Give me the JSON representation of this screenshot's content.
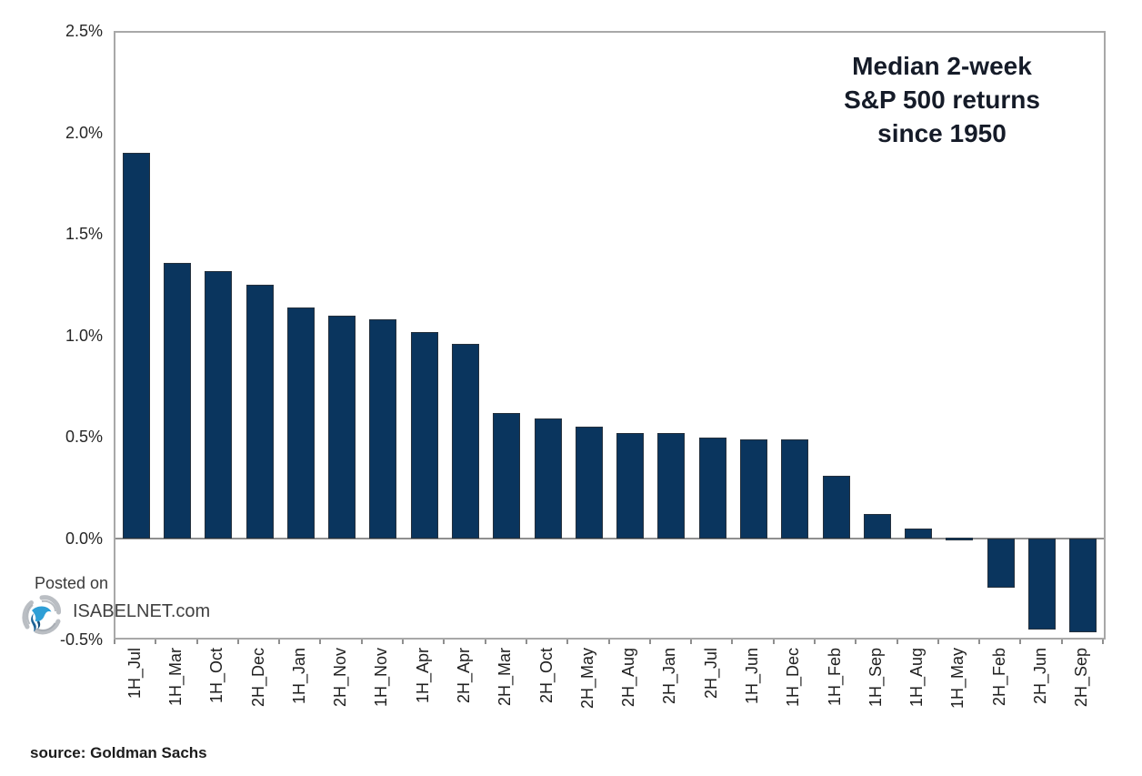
{
  "chart_data": {
    "type": "bar",
    "title": "Median 2-week S&P 500 returns since 1950",
    "title_lines": [
      "Median 2-week",
      "S&P 500 returns",
      "since 1950"
    ],
    "categories": [
      "1H_Jul",
      "1H_Mar",
      "1H_Oct",
      "2H_Dec",
      "1H_Jan",
      "2H_Nov",
      "1H_Nov",
      "1H_Apr",
      "2H_Apr",
      "2H_Mar",
      "2H_Oct",
      "2H_May",
      "2H_Aug",
      "2H_Jan",
      "2H_Jul",
      "1H_Jun",
      "1H_Dec",
      "1H_Feb",
      "1H_Sep",
      "1H_Aug",
      "1H_May",
      "2H_Feb",
      "2H_Jun",
      "2H_Sep"
    ],
    "values": [
      1.9,
      1.36,
      1.32,
      1.25,
      1.14,
      1.1,
      1.08,
      1.02,
      0.96,
      0.62,
      0.59,
      0.55,
      0.52,
      0.52,
      0.5,
      0.49,
      0.49,
      0.31,
      0.12,
      0.05,
      0.0,
      -0.24,
      -0.45,
      -0.46
    ],
    "unit": "%",
    "xlabel": "",
    "ylabel": "",
    "ylim": [
      -0.5,
      2.5
    ],
    "y_tick_labels": [
      "2.5%",
      "2.0%",
      "1.5%",
      "1.0%",
      "0.5%",
      "0.0%",
      "-0.5%"
    ],
    "grid": false,
    "legend_position": "none",
    "bar_color": "#0a355e",
    "axis_color": "#a8a8a8"
  },
  "watermark": {
    "posted_on": "Posted on",
    "site": "ISABELNET.com",
    "logo_icon": "isabelnet-swirl-logo"
  },
  "source_line": "source: Goldman Sachs"
}
